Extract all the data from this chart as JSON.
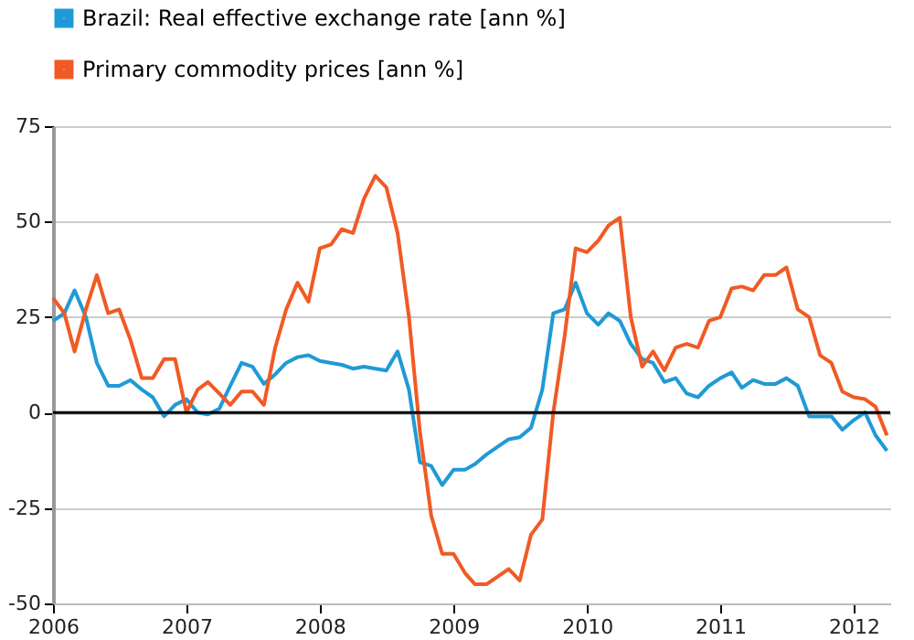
{
  "chart_data": {
    "type": "line",
    "x": [
      "2006-01",
      "2006-02",
      "2006-03",
      "2006-04",
      "2006-05",
      "2006-06",
      "2006-07",
      "2006-08",
      "2006-09",
      "2006-10",
      "2006-11",
      "2006-12",
      "2007-01",
      "2007-02",
      "2007-03",
      "2007-04",
      "2007-05",
      "2007-06",
      "2007-07",
      "2007-08",
      "2007-09",
      "2007-10",
      "2007-11",
      "2007-12",
      "2008-01",
      "2008-02",
      "2008-03",
      "2008-04",
      "2008-05",
      "2008-06",
      "2008-07",
      "2008-08",
      "2008-09",
      "2008-10",
      "2008-11",
      "2008-12",
      "2009-01",
      "2009-02",
      "2009-03",
      "2009-04",
      "2009-05",
      "2009-06",
      "2009-07",
      "2009-08",
      "2009-09",
      "2009-10",
      "2009-11",
      "2009-12",
      "2010-01",
      "2010-02",
      "2010-03",
      "2010-04",
      "2010-05",
      "2010-06",
      "2010-07",
      "2010-08",
      "2010-09",
      "2010-10",
      "2010-11",
      "2010-12",
      "2011-01",
      "2011-02",
      "2011-03",
      "2011-04",
      "2011-05",
      "2011-06",
      "2011-07",
      "2011-08",
      "2011-09",
      "2011-10",
      "2011-11",
      "2011-12",
      "2012-01",
      "2012-02",
      "2012-03",
      "2012-04"
    ],
    "series": [
      {
        "name": "Brazil: Real effective exchange rate [ann %]",
        "color": "#1f9ad6",
        "values": [
          24,
          26,
          32,
          25,
          13,
          7,
          7,
          8.5,
          6,
          4,
          -1,
          2,
          3.5,
          0,
          -0.5,
          1,
          7,
          13,
          12,
          7.5,
          10,
          13,
          14.5,
          15,
          13.5,
          13,
          12.5,
          11.5,
          12,
          11.5,
          11,
          16,
          6,
          -13,
          -14,
          -19,
          -15,
          -15,
          -13.5,
          -11,
          -9,
          -7,
          -6.5,
          -4,
          6,
          26,
          27,
          34,
          26,
          23,
          26,
          24,
          18,
          14,
          13,
          8,
          9,
          5,
          4,
          7,
          9,
          10.5,
          6.5,
          8.5,
          7.5,
          7.5,
          9,
          7,
          -1,
          -1,
          -1,
          -4.5,
          -2,
          0,
          -6,
          -10
        ]
      },
      {
        "name": "Primary commodity prices [ann %]",
        "color": "#f15a24",
        "values": [
          30,
          26,
          16,
          27,
          36,
          26,
          27,
          19,
          9,
          9,
          14,
          14,
          0,
          6,
          8,
          5,
          2,
          5.5,
          5.5,
          2,
          17,
          27,
          34,
          29,
          43,
          44,
          48,
          47,
          56,
          62,
          59,
          47,
          25,
          -5,
          -27,
          -37,
          -37,
          -42,
          -45,
          -45,
          -43,
          -41,
          -44,
          -32,
          -28,
          0,
          20,
          43,
          42,
          45,
          49,
          51,
          25,
          12,
          16,
          11,
          17,
          18,
          17,
          24,
          25,
          32.5,
          33,
          32,
          36,
          36,
          38,
          27,
          25,
          15,
          13,
          5.5,
          4,
          3.5,
          1.5,
          -6
        ]
      }
    ],
    "xlim": [
      "2006-01",
      "2012-04-10"
    ],
    "xticks": [
      {
        "value": "2006",
        "label": "2006"
      },
      {
        "value": "2007",
        "label": "2007"
      },
      {
        "value": "2008",
        "label": "2008"
      },
      {
        "value": "2009",
        "label": "2009"
      },
      {
        "value": "2010",
        "label": "2010"
      },
      {
        "value": "2011",
        "label": "2011"
      },
      {
        "value": "2012",
        "label": "2012"
      }
    ],
    "ylim": [
      -50,
      75
    ],
    "yticks": [
      -50,
      -25,
      0,
      25,
      50,
      75
    ],
    "ref_lines": [
      {
        "axis": "y",
        "value": 0,
        "color": "#000000"
      }
    ],
    "grid": "y",
    "legend": "top left",
    "line_style": "solid",
    "marker": "none"
  }
}
